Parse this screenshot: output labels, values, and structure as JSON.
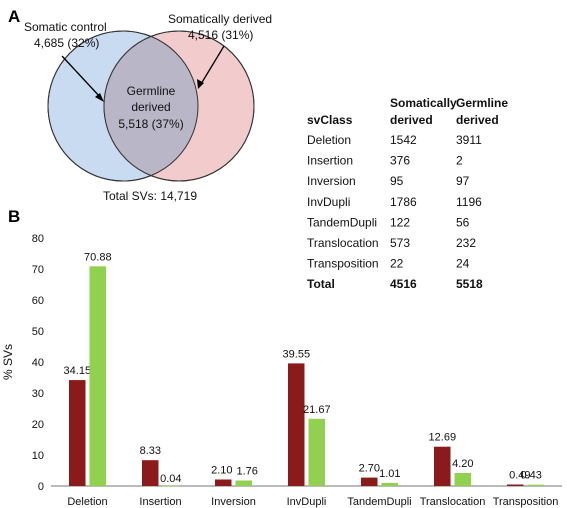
{
  "panel_a": {
    "letter": "A",
    "somatic_control_label": "Somatic control",
    "somatic_control_value": "4,685 (32%)",
    "somatically_derived_label": "Somatically derived",
    "somatically_derived_value": "4,516 (31%)",
    "germline_line1": "Germline",
    "germline_line2": "derived",
    "germline_value": "5,518 (37%)",
    "total": "Total SVs: 14,719",
    "colors": {
      "blue_circle": "#c9dbf1",
      "red_circle": "#f2cccc",
      "overlap": "#b9b6c8"
    }
  },
  "table": {
    "headers": [
      "svClass",
      "Somatically derived",
      "Germline derived"
    ],
    "header_lines": {
      "col1": "svClass",
      "col2_line1": "Somatically",
      "col2_line2": "derived",
      "col3_line1": "Germline",
      "col3_line2": "derived"
    },
    "rows": [
      {
        "svClass": "Deletion",
        "somatic": "1542",
        "germline": "3911"
      },
      {
        "svClass": "Insertion",
        "somatic": "376",
        "germline": "2"
      },
      {
        "svClass": "Inversion",
        "somatic": "95",
        "germline": "97"
      },
      {
        "svClass": "InvDupli",
        "somatic": "1786",
        "germline": "1196"
      },
      {
        "svClass": "TandemDupli",
        "somatic": "122",
        "germline": "56"
      },
      {
        "svClass": "Translocation",
        "somatic": "573",
        "germline": "232"
      },
      {
        "svClass": "Transposition",
        "somatic": "22",
        "germline": "24"
      }
    ],
    "total": {
      "svClass": "Total",
      "somatic": "4516",
      "germline": "5518"
    }
  },
  "panel_b": {
    "letter": "B"
  },
  "chart_data": {
    "type": "bar",
    "categories": [
      "Deletion",
      "Insertion",
      "Inversion",
      "InvDupli",
      "TandemDupli",
      "Translocation",
      "Transposition"
    ],
    "series": [
      {
        "values": [
          34.15,
          8.33,
          2.1,
          39.55,
          2.7,
          12.69,
          0.49
        ],
        "labels": [
          "34.15",
          "8.33",
          "2.10",
          "39.55",
          "2.70",
          "12.69",
          "0.49"
        ],
        "color": "#8b1a1a"
      },
      {
        "values": [
          70.88,
          0.04,
          1.76,
          21.67,
          1.01,
          4.2,
          0.43
        ],
        "labels": [
          "70.88",
          "0.04",
          "1.76",
          "21.67",
          "1.01",
          "4.20",
          "0.43"
        ],
        "color": "#92d050"
      }
    ],
    "ylabel": "% SVs",
    "ylim": [
      0,
      80
    ],
    "yticks": [
      "0",
      "10",
      "20",
      "30",
      "40",
      "50",
      "60",
      "70",
      "80"
    ],
    "grid": false
  }
}
